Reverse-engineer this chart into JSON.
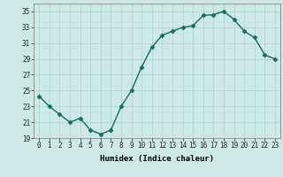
{
  "xlabel": "Humidex (Indice chaleur)",
  "ylabel": "",
  "x": [
    0,
    1,
    2,
    3,
    4,
    5,
    6,
    7,
    8,
    9,
    10,
    11,
    12,
    13,
    14,
    15,
    16,
    17,
    18,
    19,
    20,
    21,
    22,
    23
  ],
  "y": [
    24.3,
    23.0,
    22.0,
    21.0,
    21.5,
    20.0,
    19.5,
    20.0,
    23.0,
    25.0,
    28.0,
    30.5,
    32.0,
    32.5,
    33.0,
    33.2,
    34.5,
    34.6,
    35.0,
    34.0,
    32.5,
    31.7,
    29.5,
    29.0
  ],
  "ylim": [
    19,
    36
  ],
  "yticks": [
    19,
    21,
    23,
    25,
    27,
    29,
    31,
    33,
    35
  ],
  "xlim": [
    -0.5,
    23.5
  ],
  "line_color": "#1a6b5a",
  "marker": "D",
  "marker_size": 2.5,
  "bg_color": "#cce9e5",
  "grid_color": "#aad4cf",
  "xlabel_fontsize": 6.5,
  "tick_fontsize": 5.5,
  "linewidth": 1.0
}
